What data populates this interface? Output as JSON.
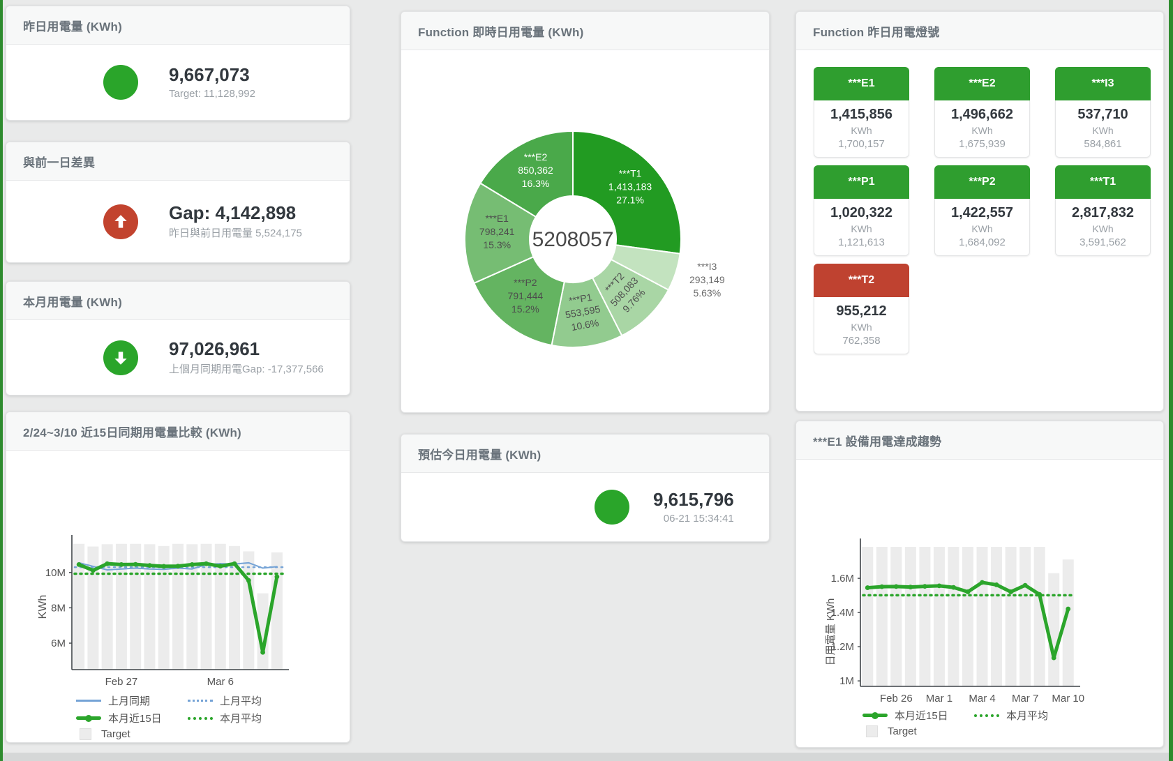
{
  "cards": {
    "yesterday": {
      "title": "昨日用電量 (KWh)",
      "value": "9,667,073",
      "subtitle": "Target: 11,128,992"
    },
    "day_gap": {
      "title": "與前一日差異",
      "value": "Gap: 4,142,898",
      "subtitle": "昨日與前日用電量 5,524,175"
    },
    "month": {
      "title": "本月用電量 (KWh)",
      "value": "97,026,961",
      "subtitle": "上個月同期用電Gap: -17,377,566"
    },
    "today_estimate": {
      "title": "預估今日用電量 (KWh)",
      "value": "9,615,796",
      "subtitle": "06-21 15:34:41"
    },
    "realtime_donut": {
      "title": "Function 即時日用電量 (KWh)"
    },
    "lights_panel": {
      "title": "Function 昨日用電燈號"
    },
    "compare15": {
      "title": "2/24~3/10 近15日同期用電量比較 (KWh)"
    },
    "e1_trend": {
      "title": "***E1 設備用電達成趨勢"
    }
  },
  "lights": {
    "tiles": [
      {
        "label": "***E1",
        "value": "1,415,856",
        "unit": "KWh",
        "target": "1,700,157",
        "status": "green"
      },
      {
        "label": "***E2",
        "value": "1,496,662",
        "unit": "KWh",
        "target": "1,675,939",
        "status": "green"
      },
      {
        "label": "***I3",
        "value": "537,710",
        "unit": "KWh",
        "target": "584,861",
        "status": "green"
      },
      {
        "label": "***P1",
        "value": "1,020,322",
        "unit": "KWh",
        "target": "1,121,613",
        "status": "green"
      },
      {
        "label": "***P2",
        "value": "1,422,557",
        "unit": "KWh",
        "target": "1,684,092",
        "status": "green"
      },
      {
        "label": "***T1",
        "value": "2,817,832",
        "unit": "KWh",
        "target": "3,591,562",
        "status": "green"
      },
      {
        "label": "***T2",
        "value": "955,212",
        "unit": "KWh",
        "target": "762,358",
        "status": "red"
      }
    ]
  },
  "colors": {
    "green_icon": "#2aa52a",
    "red_icon": "#c2432e",
    "tile_green": "#2f9e2f",
    "tile_red": "#bf4230",
    "target_bar": "#ececec",
    "blue_line": "#75a3d6",
    "green_line": "#2ba52b"
  },
  "chart_data": [
    {
      "id": "realtime_donut",
      "type": "pie",
      "title": "Function 即時日用電量 (KWh)",
      "center_label": "5208057",
      "total": 5208057,
      "slices": [
        {
          "name": "***T1",
          "value": 1413183,
          "pct": "27.1%",
          "color": "#229b22",
          "label_color": "#ffffff",
          "label_rotate": 0,
          "label_outside": false
        },
        {
          "name": "***I3",
          "value": 293149,
          "pct": "5.63%",
          "color": "#c3e3bf",
          "label_color": "#6b6b6b",
          "label_rotate": 0,
          "label_outside": true
        },
        {
          "name": "***T2",
          "value": 508083,
          "pct": "9.76%",
          "color": "#a9d6a5",
          "label_color": "#4d4d4d",
          "label_rotate": -47,
          "label_outside": false
        },
        {
          "name": "***P1",
          "value": 553595,
          "pct": "10.6%",
          "color": "#92cb8f",
          "label_color": "#4d4d4d",
          "label_rotate": -10,
          "label_outside": false
        },
        {
          "name": "***P2",
          "value": 791444,
          "pct": "15.2%",
          "color": "#64b461",
          "label_color": "#4d4d4d",
          "label_rotate": 0,
          "label_outside": false
        },
        {
          "name": "***E1",
          "value": 798241,
          "pct": "15.3%",
          "color": "#76bd73",
          "label_color": "#4d4d4d",
          "label_rotate": 0,
          "label_outside": false
        },
        {
          "name": "***E2",
          "value": 850362,
          "pct": "16.3%",
          "color": "#4aa94a",
          "label_color": "#ffffff",
          "label_rotate": 0,
          "label_outside": false
        }
      ]
    },
    {
      "id": "compare15",
      "type": "line+bar",
      "title": "2/24~3/10 近15日同期用電量比較 (KWh)",
      "ylabel": "KWh",
      "ylim": [
        4500000,
        11650000
      ],
      "yticks": [
        {
          "value": 6000000,
          "label": "6M"
        },
        {
          "value": 8000000,
          "label": "8M"
        },
        {
          "value": 10000000,
          "label": "10M"
        }
      ],
      "n_points": 15,
      "xticks": [
        {
          "index": 3,
          "label": "Feb 27"
        },
        {
          "index": 10,
          "label": "Mar 6"
        }
      ],
      "bars": {
        "name": "Target",
        "color": "#ececec",
        "values": [
          11620000,
          11470000,
          11600000,
          11620000,
          11620000,
          11600000,
          11500000,
          11620000,
          11600000,
          11620000,
          11620000,
          11500000,
          11200000,
          8820000,
          11140000
        ]
      },
      "series": [
        {
          "name": "上月同期",
          "style": "thin",
          "color": "#75a3d6",
          "values": [
            10550000,
            10350000,
            10150000,
            10200000,
            10250000,
            10200000,
            10180000,
            10250000,
            10200000,
            10450000,
            10500000,
            10480000,
            10550000,
            10250000,
            10330000
          ]
        },
        {
          "name": "上月平均",
          "style": "dotted",
          "color": "#75a3d6",
          "value": 10300000
        },
        {
          "name": "本月近15日",
          "style": "thick",
          "color": "#2ba52b",
          "values": [
            10450000,
            10120000,
            10500000,
            10450000,
            10460000,
            10400000,
            10350000,
            10360000,
            10450000,
            10500000,
            10360000,
            10500000,
            9550000,
            5480000,
            9760000
          ]
        },
        {
          "name": "本月平均",
          "style": "dotted",
          "color": "#2ba52b",
          "value": 9930000
        }
      ],
      "legend": [
        [
          {
            "label": "上月同期",
            "swatch": "blue-line"
          },
          {
            "label": "上月平均",
            "swatch": "blue-dot"
          }
        ],
        [
          {
            "label": "本月近15日",
            "swatch": "green-line"
          },
          {
            "label": "本月平均",
            "swatch": "green-dot"
          }
        ],
        [
          {
            "label": "Target",
            "swatch": "target-square"
          }
        ]
      ]
    },
    {
      "id": "e1_trend",
      "type": "line+bar",
      "title": "***E1 設備用電達成趨勢",
      "ylabel": "日用電量 KWh",
      "ylim": [
        968000,
        1784000
      ],
      "yticks": [
        {
          "value": 1000000,
          "label": "1M"
        },
        {
          "value": 1200000,
          "label": "1.2M"
        },
        {
          "value": 1400000,
          "label": "1.4M"
        },
        {
          "value": 1600000,
          "label": "1.6M"
        }
      ],
      "n_points": 15,
      "xticks": [
        {
          "index": 2,
          "label": "Feb 26"
        },
        {
          "index": 5,
          "label": "Mar 1"
        },
        {
          "index": 8,
          "label": "Mar 4"
        },
        {
          "index": 11,
          "label": "Mar 7"
        },
        {
          "index": 14,
          "label": "Mar 10"
        }
      ],
      "bars": {
        "name": "Target",
        "color": "#ececec",
        "values": [
          1790000,
          1790000,
          1790000,
          1790000,
          1790000,
          1790000,
          1790000,
          1790000,
          1790000,
          1790000,
          1790000,
          1790000,
          1790000,
          1630000,
          1710000
        ]
      },
      "series": [
        {
          "name": "本月近15日",
          "style": "thick",
          "color": "#2ba52b",
          "values": [
            1545000,
            1551000,
            1552000,
            1549000,
            1553000,
            1556000,
            1547000,
            1521000,
            1576000,
            1562000,
            1521000,
            1559000,
            1506000,
            1135000,
            1421000
          ]
        },
        {
          "name": "本月平均",
          "style": "dotted",
          "color": "#2ba52b",
          "value": 1501000
        }
      ],
      "legend": [
        [
          {
            "label": "本月近15日",
            "swatch": "green-line"
          },
          {
            "label": "本月平均",
            "swatch": "green-dot"
          }
        ],
        [
          {
            "label": "Target",
            "swatch": "target-square"
          }
        ]
      ]
    }
  ]
}
